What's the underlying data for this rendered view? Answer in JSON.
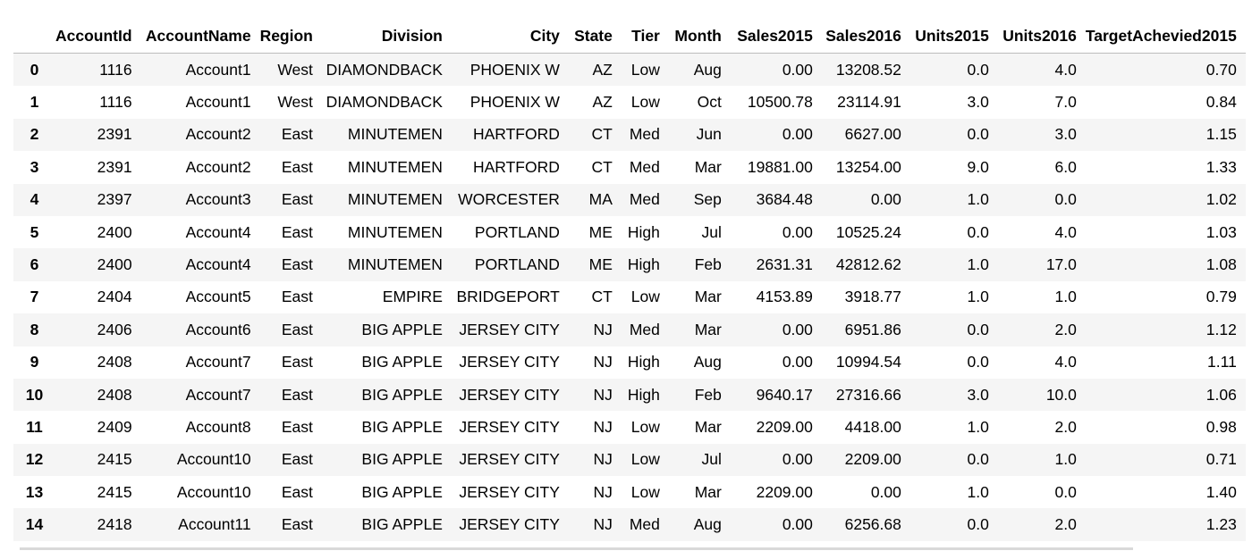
{
  "table": {
    "index_header": "",
    "columns": [
      "AccountId",
      "AccountName",
      "Region",
      "Division",
      "City",
      "State",
      "Tier",
      "Month",
      "Sales2015",
      "Sales2016",
      "Units2015",
      "Units2016",
      "TargetAchevied2015"
    ],
    "rows": [
      {
        "index": "0",
        "cells": [
          "1116",
          "Account1",
          "West",
          "DIAMONDBACK",
          "PHOENIX W",
          "AZ",
          "Low",
          "Aug",
          "0.00",
          "13208.52",
          "0.0",
          "4.0",
          "0.70"
        ]
      },
      {
        "index": "1",
        "cells": [
          "1116",
          "Account1",
          "West",
          "DIAMONDBACK",
          "PHOENIX W",
          "AZ",
          "Low",
          "Oct",
          "10500.78",
          "23114.91",
          "3.0",
          "7.0",
          "0.84"
        ]
      },
      {
        "index": "2",
        "cells": [
          "2391",
          "Account2",
          "East",
          "MINUTEMEN",
          "HARTFORD",
          "CT",
          "Med",
          "Jun",
          "0.00",
          "6627.00",
          "0.0",
          "3.0",
          "1.15"
        ]
      },
      {
        "index": "3",
        "cells": [
          "2391",
          "Account2",
          "East",
          "MINUTEMEN",
          "HARTFORD",
          "CT",
          "Med",
          "Mar",
          "19881.00",
          "13254.00",
          "9.0",
          "6.0",
          "1.33"
        ]
      },
      {
        "index": "4",
        "cells": [
          "2397",
          "Account3",
          "East",
          "MINUTEMEN",
          "WORCESTER",
          "MA",
          "Med",
          "Sep",
          "3684.48",
          "0.00",
          "1.0",
          "0.0",
          "1.02"
        ]
      },
      {
        "index": "5",
        "cells": [
          "2400",
          "Account4",
          "East",
          "MINUTEMEN",
          "PORTLAND",
          "ME",
          "High",
          "Jul",
          "0.00",
          "10525.24",
          "0.0",
          "4.0",
          "1.03"
        ]
      },
      {
        "index": "6",
        "cells": [
          "2400",
          "Account4",
          "East",
          "MINUTEMEN",
          "PORTLAND",
          "ME",
          "High",
          "Feb",
          "2631.31",
          "42812.62",
          "1.0",
          "17.0",
          "1.08"
        ]
      },
      {
        "index": "7",
        "cells": [
          "2404",
          "Account5",
          "East",
          "EMPIRE",
          "BRIDGEPORT",
          "CT",
          "Low",
          "Mar",
          "4153.89",
          "3918.77",
          "1.0",
          "1.0",
          "0.79"
        ]
      },
      {
        "index": "8",
        "cells": [
          "2406",
          "Account6",
          "East",
          "BIG APPLE",
          "JERSEY CITY",
          "NJ",
          "Med",
          "Mar",
          "0.00",
          "6951.86",
          "0.0",
          "2.0",
          "1.12"
        ]
      },
      {
        "index": "9",
        "cells": [
          "2408",
          "Account7",
          "East",
          "BIG APPLE",
          "JERSEY CITY",
          "NJ",
          "High",
          "Aug",
          "0.00",
          "10994.54",
          "0.0",
          "4.0",
          "1.11"
        ]
      },
      {
        "index": "10",
        "cells": [
          "2408",
          "Account7",
          "East",
          "BIG APPLE",
          "JERSEY CITY",
          "NJ",
          "High",
          "Feb",
          "9640.17",
          "27316.66",
          "3.0",
          "10.0",
          "1.06"
        ]
      },
      {
        "index": "11",
        "cells": [
          "2409",
          "Account8",
          "East",
          "BIG APPLE",
          "JERSEY CITY",
          "NJ",
          "Low",
          "Mar",
          "2209.00",
          "4418.00",
          "1.0",
          "2.0",
          "0.98"
        ]
      },
      {
        "index": "12",
        "cells": [
          "2415",
          "Account10",
          "East",
          "BIG APPLE",
          "JERSEY CITY",
          "NJ",
          "Low",
          "Jul",
          "0.00",
          "2209.00",
          "0.0",
          "1.0",
          "0.71"
        ]
      },
      {
        "index": "13",
        "cells": [
          "2415",
          "Account10",
          "East",
          "BIG APPLE",
          "JERSEY CITY",
          "NJ",
          "Low",
          "Mar",
          "2209.00",
          "0.00",
          "1.0",
          "0.0",
          "1.40"
        ]
      },
      {
        "index": "14",
        "cells": [
          "2418",
          "Account11",
          "East",
          "BIG APPLE",
          "JERSEY CITY",
          "NJ",
          "Med",
          "Aug",
          "0.00",
          "6256.68",
          "0.0",
          "2.0",
          "1.23"
        ]
      }
    ]
  },
  "colors": {
    "stripe_odd": "#f5f5f5",
    "stripe_even": "#ffffff",
    "header_border": "#bdbdbd"
  }
}
